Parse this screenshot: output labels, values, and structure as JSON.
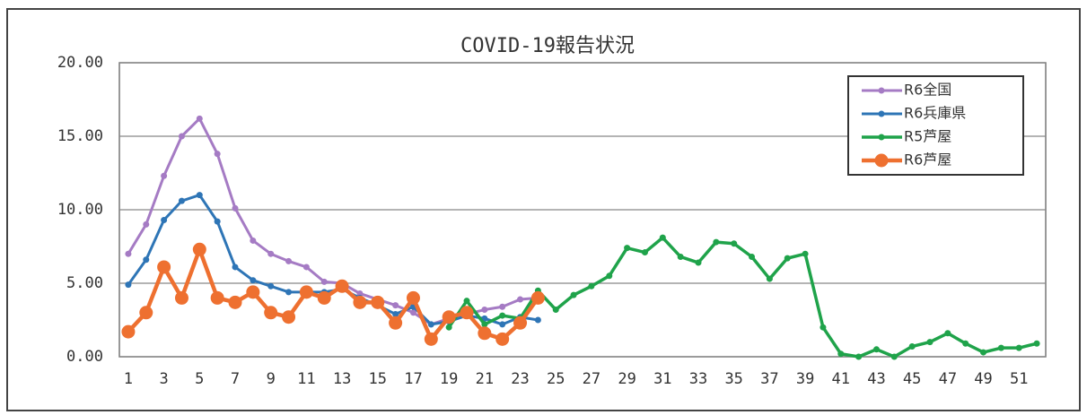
{
  "chart_data": {
    "type": "line",
    "title": "COVID-19報告状況",
    "categories": [
      1,
      null,
      3,
      null,
      5,
      null,
      7,
      null,
      9,
      null,
      11,
      null,
      13,
      null,
      15,
      null,
      17,
      null,
      19,
      null,
      21,
      null,
      23,
      null,
      25,
      null,
      27,
      null,
      29,
      null,
      31,
      null,
      33,
      null,
      35,
      null,
      37,
      null,
      39,
      null,
      41,
      null,
      43,
      null,
      45,
      null,
      47,
      null,
      49,
      null,
      51,
      null
    ],
    "ylim": [
      0,
      20
    ],
    "yticks": [
      {
        "value": 0,
        "label": "0.00"
      },
      {
        "value": 5,
        "label": "5.00"
      },
      {
        "value": 10,
        "label": "10.00"
      },
      {
        "value": 15,
        "label": "15.00"
      },
      {
        "value": 20,
        "label": "20.00"
      }
    ],
    "grid": true,
    "legend": "top-right",
    "series": [
      {
        "name": "R6全国",
        "color": "#a57bc4",
        "values": [
          7.0,
          9.0,
          12.3,
          15.0,
          16.2,
          13.8,
          10.1,
          7.9,
          7.0,
          6.5,
          6.1,
          5.1,
          5.0,
          4.3,
          3.9,
          3.5,
          3.0,
          2.2,
          2.6,
          2.9,
          3.2,
          3.4,
          3.9,
          4.0,
          null,
          null,
          null,
          null,
          null,
          null,
          null,
          null,
          null,
          null,
          null,
          null,
          null,
          null,
          null,
          null,
          null,
          null,
          null,
          null,
          null,
          null,
          null,
          null,
          null,
          null,
          null,
          null
        ]
      },
      {
        "name": "R6兵庫県",
        "color": "#2e75b6",
        "values": [
          4.9,
          6.6,
          9.3,
          10.6,
          11.0,
          9.2,
          6.1,
          5.2,
          4.8,
          4.4,
          4.4,
          4.4,
          4.6,
          4.0,
          3.5,
          2.9,
          3.4,
          2.2,
          2.4,
          2.8,
          2.6,
          2.2,
          2.7,
          2.5,
          null,
          null,
          null,
          null,
          null,
          null,
          null,
          null,
          null,
          null,
          null,
          null,
          null,
          null,
          null,
          null,
          null,
          null,
          null,
          null,
          null,
          null,
          null,
          null,
          null,
          null,
          null,
          null
        ]
      },
      {
        "name": "R5芦屋",
        "color": "#1fa34a",
        "values": [
          null,
          null,
          null,
          null,
          null,
          null,
          null,
          null,
          null,
          null,
          null,
          null,
          null,
          null,
          null,
          null,
          null,
          null,
          2.0,
          3.8,
          2.2,
          2.8,
          2.6,
          4.5,
          3.2,
          4.2,
          4.8,
          5.5,
          7.4,
          7.1,
          8.1,
          6.8,
          6.4,
          7.8,
          7.7,
          6.8,
          5.3,
          6.7,
          7.0,
          2.0,
          0.2,
          0,
          0.5,
          0,
          0.7,
          1.0,
          1.6,
          0.9,
          0.3,
          0.6,
          0.6,
          0.9
        ]
      },
      {
        "name": "R6芦屋",
        "color": "#ee7030",
        "values": [
          1.7,
          3.0,
          6.1,
          4.0,
          7.3,
          4.0,
          3.7,
          4.4,
          3.0,
          2.7,
          4.4,
          4.0,
          4.8,
          3.7,
          3.7,
          2.3,
          4.0,
          1.2,
          2.7,
          3.0,
          1.6,
          1.2,
          2.3,
          4.0,
          null,
          null,
          null,
          null,
          null,
          null,
          null,
          null,
          null,
          null,
          null,
          null,
          null,
          null,
          null,
          null,
          null,
          null,
          null,
          null,
          null,
          null,
          null,
          null,
          null,
          null,
          null,
          null
        ]
      }
    ]
  }
}
